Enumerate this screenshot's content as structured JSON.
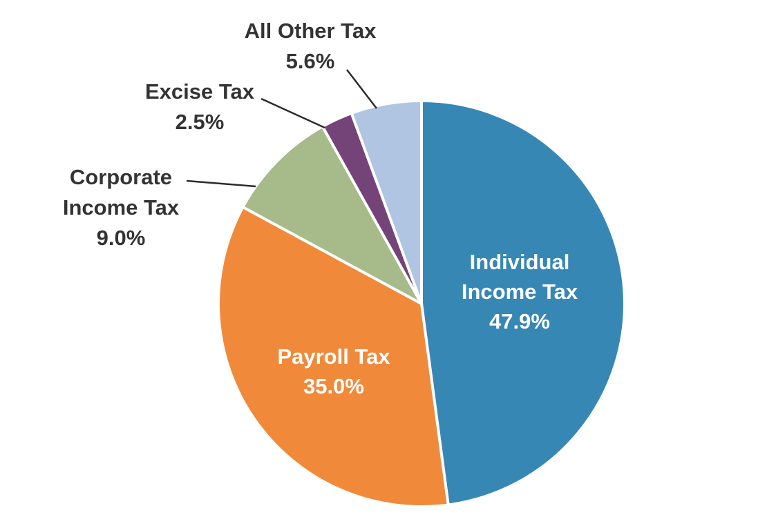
{
  "chart_data": {
    "type": "pie",
    "slices": [
      {
        "label": "Individual Income Tax",
        "label_lines": [
          "Individual",
          "Income Tax"
        ],
        "value": 47.9,
        "value_label": "47.9%",
        "color": "#3787b5",
        "label_color": "#ffffff"
      },
      {
        "label": "Payroll Tax",
        "label_lines": [
          "Payroll Tax"
        ],
        "value": 35.0,
        "value_label": "35.0%",
        "color": "#f08a3a",
        "label_color": "#ffffff"
      },
      {
        "label": "Corporate Income Tax",
        "label_lines": [
          "Corporate",
          "Income Tax"
        ],
        "value": 9.0,
        "value_label": "9.0%",
        "color": "#a7bb8a",
        "label_color": "#333333"
      },
      {
        "label": "Excise Tax",
        "label_lines": [
          "Excise Tax"
        ],
        "value": 2.5,
        "value_label": "2.5%",
        "color": "#744478",
        "label_color": "#333333"
      },
      {
        "label": "All Other Tax",
        "label_lines": [
          "All Other Tax"
        ],
        "value": 5.6,
        "value_label": "5.6%",
        "color": "#b0c5e1",
        "label_color": "#333333"
      }
    ],
    "start_angle": "12 o'clock",
    "direction": "clockwise",
    "legend": "none"
  }
}
